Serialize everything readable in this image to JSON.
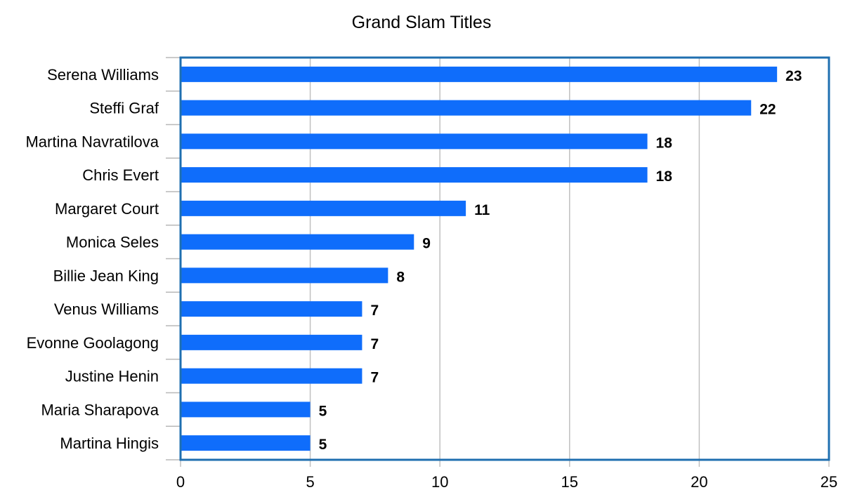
{
  "chart_data": {
    "type": "bar",
    "orientation": "horizontal",
    "title": "Grand Slam Titles",
    "xlabel": "",
    "ylabel": "",
    "xlim": [
      0,
      25
    ],
    "x_ticks": [
      0,
      5,
      10,
      15,
      20,
      25
    ],
    "grid": true,
    "legend": "none",
    "categories": [
      "Serena Williams",
      "Steffi Graf",
      "Martina Navratilova",
      "Chris Evert",
      "Margaret Court",
      "Monica Seles",
      "Billie Jean King",
      "Venus Williams",
      "Evonne Goolagong",
      "Justine Henin",
      "Maria Sharapova",
      "Martina Hingis"
    ],
    "values": [
      23,
      22,
      18,
      18,
      11,
      9,
      8,
      7,
      7,
      7,
      5,
      5
    ],
    "data_labels": [
      "23",
      "22",
      "18",
      "18",
      "11",
      "9",
      "8",
      "7",
      "7",
      "7",
      "5",
      "5"
    ],
    "colors": {
      "bar": "#0f6dfb",
      "gridline": "#c0c0c0",
      "frame": "#1f6fb0",
      "axis_ticks": "#b8b8b8"
    }
  }
}
